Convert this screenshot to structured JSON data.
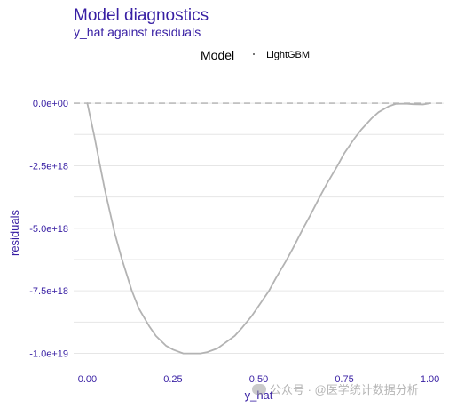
{
  "header": {
    "title": "Model diagnostics",
    "subtitle": "y_hat against residuals"
  },
  "legend": {
    "title": "Model",
    "items": [
      {
        "label": "LightGBM",
        "color": "#4a4a4a"
      }
    ]
  },
  "watermark": {
    "text": "公众号 · @医学统计数据分析"
  },
  "chart_data": {
    "type": "line",
    "title": "Model diagnostics",
    "subtitle": "y_hat against residuals",
    "xlabel": "y_hat",
    "ylabel": "residuals",
    "xlim": [
      -0.04,
      1.04
    ],
    "ylim": [
      -1.03e+19,
      5e+17
    ],
    "x_ticks": [
      0,
      0.25,
      0.5,
      0.75,
      1.0
    ],
    "x_tick_labels": [
      "0.00",
      "0.25",
      "0.50",
      "0.75",
      "1.00"
    ],
    "y_ticks": [
      0,
      -2.5e+18,
      -5e+18,
      -7.5e+18,
      -1e+19
    ],
    "y_tick_labels": [
      "0.0e+00",
      "-2.5e+18",
      "-5.0e+18",
      "-7.5e+18",
      "-1.0e+19"
    ],
    "grid": true,
    "legend_position": "top",
    "reference_line": {
      "y": 0,
      "style": "dashed",
      "color": "#b0b0b0"
    },
    "series": [
      {
        "name": "LightGBM",
        "color": "#b3b3b3",
        "x": [
          0.0,
          0.02,
          0.05,
          0.08,
          0.1,
          0.13,
          0.15,
          0.18,
          0.2,
          0.23,
          0.25,
          0.28,
          0.3,
          0.33,
          0.35,
          0.38,
          0.4,
          0.43,
          0.45,
          0.48,
          0.5,
          0.53,
          0.55,
          0.58,
          0.6,
          0.63,
          0.65,
          0.68,
          0.7,
          0.73,
          0.75,
          0.78,
          0.8,
          0.83,
          0.85,
          0.88,
          0.9,
          0.93,
          0.95,
          0.98,
          1.0
        ],
        "y": [
          0,
          -1.3e+18,
          -3.4e+18,
          -5.2e+18,
          -6.2e+18,
          -7.5e+18,
          -8.2e+18,
          -8.9e+18,
          -9.3e+18,
          -9.7e+18,
          -9.85e+18,
          -1e+19,
          -1e+19,
          -1e+19,
          -9.95e+18,
          -9.8e+18,
          -9.6e+18,
          -9.3e+18,
          -9e+18,
          -8.5e+18,
          -8.1e+18,
          -7.5e+18,
          -7e+18,
          -6.3e+18,
          -5.8e+18,
          -5e+18,
          -4.5e+18,
          -3.7e+18,
          -3.2e+18,
          -2.5e+18,
          -2e+18,
          -1.4e+18,
          -1.05e+18,
          -6e+17,
          -3.6e+17,
          -1.2e+17,
          -3e+16,
          -2e+16,
          -4e+16,
          -5e+16,
          0
        ]
      }
    ]
  }
}
